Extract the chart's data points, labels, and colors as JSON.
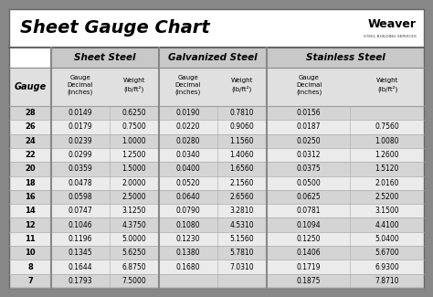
{
  "title": "Sheet Gauge Chart",
  "bg_outer": "#888888",
  "bg_inner": "#ffffff",
  "title_bg": "#ffffff",
  "gauges": [
    28,
    26,
    24,
    22,
    20,
    18,
    16,
    14,
    12,
    11,
    10,
    8,
    7
  ],
  "sheet_steel": {
    "decimal": [
      "0.0149",
      "0.0179",
      "0.0239",
      "0.0299",
      "0.0359",
      "0.0478",
      "0.0598",
      "0.0747",
      "0.1046",
      "0.1196",
      "0.1345",
      "0.1644",
      "0.1793"
    ],
    "weight": [
      "0.6250",
      "0.7500",
      "1.0000",
      "1.2500",
      "1.5000",
      "2.0000",
      "2.5000",
      "3.1250",
      "4.3750",
      "5.0000",
      "5.6250",
      "6.8750",
      "7.5000"
    ]
  },
  "galvanized_steel": {
    "decimal": [
      "0.0190",
      "0.0220",
      "0.0280",
      "0.0340",
      "0.0400",
      "0.0520",
      "0.0640",
      "0.0790",
      "0.1080",
      "0.1230",
      "0.1380",
      "0.1680",
      ""
    ],
    "weight": [
      "0.7810",
      "0.9060",
      "1.1560",
      "1.4060",
      "1.6560",
      "2.1560",
      "2.6560",
      "3.2810",
      "4.5310",
      "5.1560",
      "5.7810",
      "7.0310",
      ""
    ]
  },
  "stainless_steel": {
    "decimal": [
      "0.0156",
      "0.0187",
      "0.0250",
      "0.0312",
      "0.0375",
      "0.0500",
      "0.0625",
      "0.0781",
      "0.1094",
      "0.1250",
      "0.1406",
      "0.1719",
      "0.1875"
    ],
    "weight": [
      "",
      "0.7560",
      "1.0080",
      "1.2600",
      "1.5120",
      "2.0160",
      "2.5200",
      "3.1500",
      "4.4100",
      "5.0400",
      "5.6700",
      "6.9300",
      "7.8710"
    ]
  },
  "row_colors": [
    "#d4d4d4",
    "#ebebeb"
  ],
  "header1_bg": "#c8c8c8",
  "header2_bg": "#e0e0e0",
  "gauge_col_bg": "#e0e0e0",
  "divider_color": "#888888",
  "line_color": "#aaaaaa",
  "border_color": "#666666"
}
